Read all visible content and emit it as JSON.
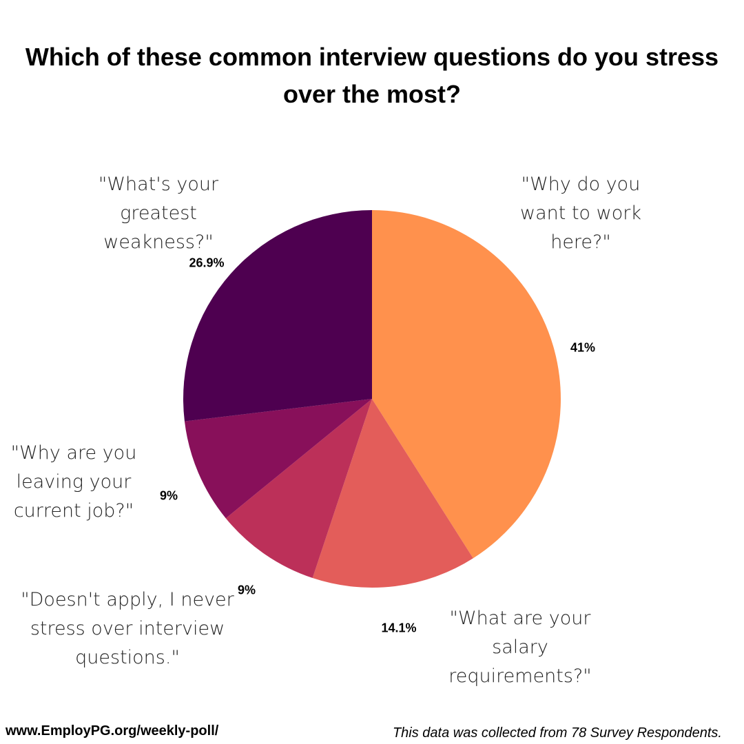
{
  "chart_data": {
    "type": "pie",
    "title": "Which of these common interview questions do you stress over the most?",
    "categories": [
      "\"Why do you want to work here?\"",
      "\"What are your salary requirements?\"",
      "\"Doesn't apply, I never stress over interview questions.\"",
      "\"Why are you leaving your current job?\"",
      "\"What's your greatest weakness?\""
    ],
    "values": [
      41,
      14.1,
      9,
      9,
      26.9
    ],
    "value_labels": [
      "41%",
      "14.1%",
      "9%",
      "9%",
      "26.9%"
    ],
    "colors": [
      "#ff914d",
      "#e35d5a",
      "#bc3059",
      "#88105a",
      "#4e0050"
    ],
    "source": "www.EmployPG.org/weekly-poll/",
    "note": "This data was collected from 78 Survey Respondents."
  }
}
